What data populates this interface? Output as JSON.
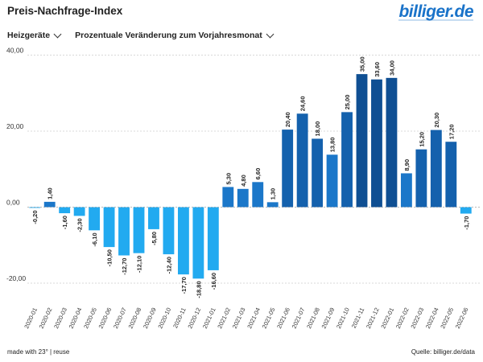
{
  "header": {
    "title": "Preis-Nachfrage-Index",
    "logo_main": "billiger",
    "logo_tld": ".de"
  },
  "controls": {
    "category": "Heizgeräte",
    "metric": "Prozentuale Veränderung zum Vorjahresmonat"
  },
  "footer": {
    "left": "made with 23° | reuse",
    "right": "Quelle: billiger.de/data"
  },
  "colors": {
    "negative": "#22aaf0",
    "mid": "#1b77c9",
    "high": "#1461ad",
    "peak": "#0f4f93",
    "grid": "#cccccc"
  },
  "chart_data": {
    "type": "bar",
    "title": "Preis-Nachfrage-Index",
    "xlabel": "",
    "ylabel": "",
    "ylim": [
      -20,
      40
    ],
    "yticks": [
      -20,
      0,
      20,
      40
    ],
    "ytick_labels": [
      "-20,00",
      "0,00",
      "20,00",
      "40,00"
    ],
    "grid": true,
    "categories": [
      "2020-01",
      "2020-02",
      "2020-03",
      "2020-04",
      "2020-05",
      "2020-06",
      "2020-07",
      "2020-08",
      "2020-09",
      "2020-10",
      "2020-11",
      "2020-12",
      "2021-01",
      "2021-02",
      "2021-03",
      "2021-04",
      "2021-05",
      "2021-06",
      "2021-07",
      "2021-08",
      "2021-09",
      "2021-10",
      "2021-11",
      "2021-12",
      "2022-01",
      "2022-02",
      "2022-03",
      "2022-04",
      "2022-05",
      "2022-06"
    ],
    "values": [
      -0.2,
      1.4,
      -1.6,
      -2.3,
      -6.1,
      -10.5,
      -12.7,
      -12.1,
      -5.8,
      -12.4,
      -17.7,
      -18.8,
      -16.6,
      5.3,
      4.8,
      6.6,
      1.3,
      20.4,
      24.6,
      18.0,
      13.8,
      25.0,
      35.0,
      33.6,
      34.0,
      8.9,
      15.2,
      20.3,
      17.2,
      -1.7
    ],
    "labels": [
      "-0,20",
      "1,40",
      "-1,60",
      "-2,30",
      "-6,10",
      "-10,50",
      "-12,70",
      "-12,10",
      "-5,80",
      "-12,40",
      "-17,70",
      "-18,80",
      "-16,60",
      "5,30",
      "4,80",
      "6,60",
      "1,30",
      "20,40",
      "24,60",
      "18,00",
      "13,80",
      "25,00",
      "35,00",
      "33,60",
      "34,00",
      "8,90",
      "15,20",
      "20,30",
      "17,20",
      "-1,70"
    ]
  }
}
